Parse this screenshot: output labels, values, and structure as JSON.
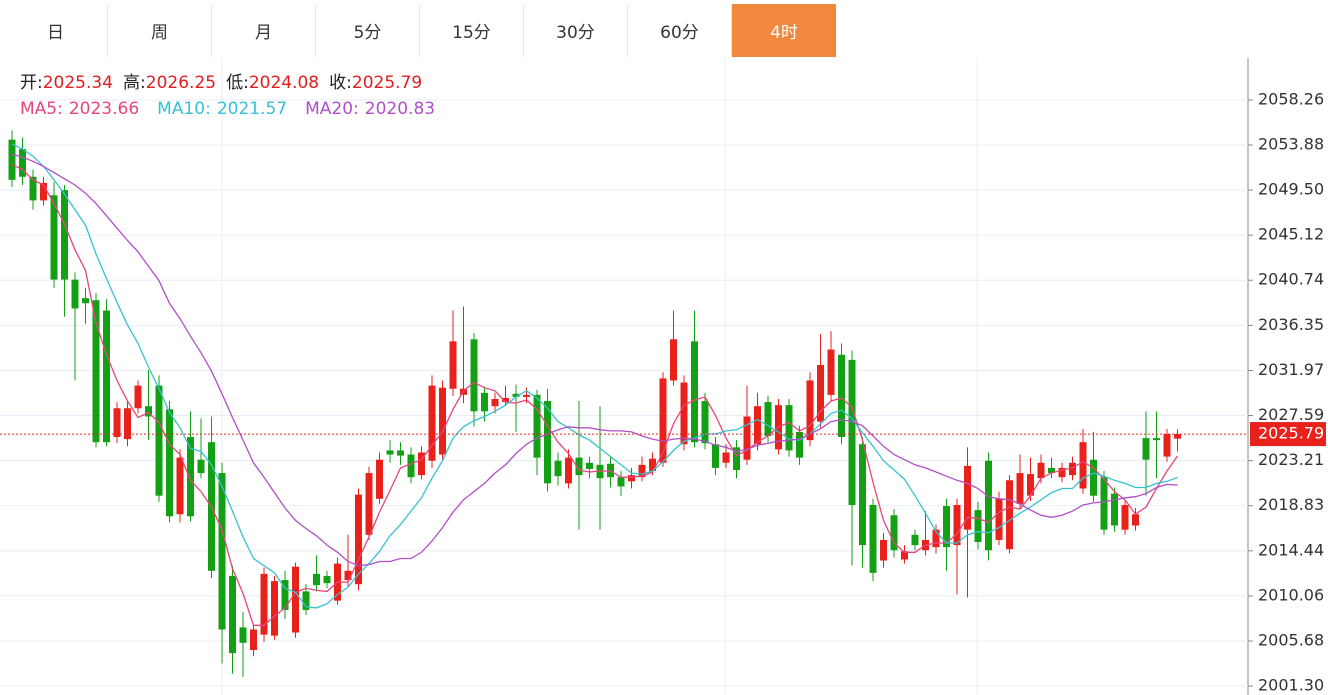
{
  "tabs": [
    "日",
    "周",
    "月",
    "5分",
    "15分",
    "30分",
    "60分",
    "4时"
  ],
  "active_tab": "4时",
  "chart_data": {
    "type": "candlestick",
    "ohlc_labels": [
      "开:",
      "高:",
      "低:",
      "收:"
    ],
    "up_color": "#e8221b",
    "down_color": "#14a014",
    "current_price": 2025.79,
    "ylim": [
      2000.43,
      2062.34
    ],
    "yticks": [
      2058.26,
      2053.88,
      {
        "value": 2049.5,
        "label": "2049.50"
      },
      2045.12,
      2040.74,
      2036.35,
      2031.97,
      2027.59,
      2023.21,
      2018.83,
      2014.44,
      2010.06,
      2005.68,
      {
        "value": 2001.3,
        "label": "2001.30"
      }
    ],
    "grid": true,
    "candles": [
      [
        2054.4,
        2055.3,
        2049.8,
        2050.5
      ],
      [
        2053.5,
        2054.6,
        2050.0,
        2050.8
      ],
      [
        2050.8,
        2051.5,
        2047.6,
        2048.5
      ],
      [
        2048.5,
        2050.8,
        2048.0,
        2050.2
      ],
      [
        2049.0,
        2050.3,
        2040.0,
        2040.8
      ],
      [
        2049.5,
        2050.0,
        2037.2,
        2040.8
      ],
      [
        2040.8,
        2041.5,
        2031.0,
        2038.0
      ],
      [
        2039.0,
        2040.0,
        2036.5,
        2038.5
      ],
      [
        2038.8,
        2039.5,
        2024.5,
        2025.0
      ],
      [
        2037.8,
        2038.9,
        2024.6,
        2025.0
      ],
      [
        2025.5,
        2028.9,
        2024.9,
        2028.3
      ],
      [
        2025.3,
        2029.0,
        2024.6,
        2028.3
      ],
      [
        2028.3,
        2031.0,
        2027.8,
        2030.5
      ],
      [
        2028.5,
        2032.0,
        2025.2,
        2027.5
      ],
      [
        2030.5,
        2031.5,
        2019.2,
        2019.8
      ],
      [
        2028.2,
        2029.0,
        2017.2,
        2017.8
      ],
      [
        2018.0,
        2024.3,
        2017.2,
        2023.5
      ],
      [
        2025.5,
        2028.0,
        2017.3,
        2017.8
      ],
      [
        2023.3,
        2027.3,
        2021.5,
        2022.0
      ],
      [
        2025.0,
        2027.5,
        2011.8,
        2012.5
      ],
      [
        2022.0,
        2023.0,
        2003.5,
        2006.8
      ],
      [
        2012.0,
        2013.0,
        2002.5,
        2004.5
      ],
      [
        2007.0,
        2008.5,
        2002.2,
        2005.5
      ],
      [
        2004.8,
        2007.2,
        2004.2,
        2006.8
      ],
      [
        2006.3,
        2012.8,
        2005.6,
        2012.2
      ],
      [
        2006.2,
        2012.0,
        2005.8,
        2011.5
      ],
      [
        2011.6,
        2012.5,
        2007.8,
        2008.7
      ],
      [
        2006.5,
        2013.3,
        2006.0,
        2012.9
      ],
      [
        2010.5,
        2011.2,
        2008.2,
        2008.7
      ],
      [
        2012.2,
        2014.0,
        2010.5,
        2011.1
      ],
      [
        2012.0,
        2012.5,
        2010.8,
        2011.3
      ],
      [
        2009.6,
        2013.8,
        2009.2,
        2013.2
      ],
      [
        2011.6,
        2016.0,
        2011.0,
        2012.5
      ],
      [
        2011.2,
        2020.5,
        2010.6,
        2019.9
      ],
      [
        2016.0,
        2022.6,
        2015.5,
        2022.0
      ],
      [
        2019.5,
        2024.0,
        2019.0,
        2023.3
      ],
      [
        2024.2,
        2025.2,
        2023.0,
        2023.8
      ],
      [
        2024.2,
        2025.0,
        2022.8,
        2023.7
      ],
      [
        2023.8,
        2024.5,
        2021.0,
        2021.6
      ],
      [
        2021.8,
        2024.6,
        2021.4,
        2024.0
      ],
      [
        2023.2,
        2031.5,
        2022.5,
        2030.5
      ],
      [
        2023.8,
        2031.0,
        2023.3,
        2030.3
      ],
      [
        2030.2,
        2037.8,
        2029.5,
        2034.8
      ],
      [
        2029.6,
        2038.2,
        2028.8,
        2030.2
      ],
      [
        2035.0,
        2035.6,
        2026.5,
        2028.0
      ],
      [
        2029.8,
        2030.4,
        2027.0,
        2028.0
      ],
      [
        2028.5,
        2029.8,
        2027.8,
        2029.2
      ],
      [
        2028.9,
        2030.5,
        2028.5,
        2029.3
      ],
      [
        2029.7,
        2030.6,
        2026.0,
        2029.4
      ],
      [
        2029.4,
        2030.3,
        2028.8,
        2029.6
      ],
      [
        2029.6,
        2030.1,
        2021.8,
        2023.5
      ],
      [
        2029.0,
        2030.2,
        2020.2,
        2021.0
      ],
      [
        2023.2,
        2024.0,
        2020.8,
        2021.7
      ],
      [
        2021.0,
        2024.3,
        2020.5,
        2023.5
      ],
      [
        2023.5,
        2029.0,
        2016.5,
        2021.8
      ],
      [
        2023.0,
        2023.6,
        2021.5,
        2022.4
      ],
      [
        2022.8,
        2028.5,
        2016.5,
        2021.5
      ],
      [
        2022.9,
        2023.6,
        2020.6,
        2021.6
      ],
      [
        2021.6,
        2022.2,
        2019.8,
        2020.7
      ],
      [
        2021.2,
        2022.5,
        2020.5,
        2021.8
      ],
      [
        2021.6,
        2023.6,
        2021.2,
        2022.8
      ],
      [
        2022.2,
        2024.0,
        2021.8,
        2023.4
      ],
      [
        2023.0,
        2031.8,
        2022.6,
        2031.2
      ],
      [
        2031.0,
        2037.8,
        2030.5,
        2035.0
      ],
      [
        2024.8,
        2031.5,
        2024.2,
        2030.8
      ],
      [
        2034.8,
        2037.8,
        2024.5,
        2025.0
      ],
      [
        2029.0,
        2029.8,
        2024.3,
        2024.9
      ],
      [
        2024.8,
        2025.5,
        2021.8,
        2022.5
      ],
      [
        2023.0,
        2024.8,
        2022.5,
        2024.0
      ],
      [
        2024.5,
        2025.2,
        2021.5,
        2022.3
      ],
      [
        2023.3,
        2030.5,
        2022.8,
        2027.5
      ],
      [
        2024.8,
        2029.8,
        2024.2,
        2028.5
      ],
      [
        2028.9,
        2029.5,
        2025.0,
        2025.6
      ],
      [
        2024.3,
        2029.2,
        2023.8,
        2028.6
      ],
      [
        2028.6,
        2029.2,
        2023.6,
        2024.2
      ],
      [
        2026.0,
        2026.6,
        2022.8,
        2023.5
      ],
      [
        2025.2,
        2031.8,
        2024.6,
        2031.0
      ],
      [
        2027.0,
        2035.5,
        2026.4,
        2032.5
      ],
      [
        2029.6,
        2035.8,
        2029.0,
        2034.0
      ],
      [
        2033.5,
        2034.6,
        2024.8,
        2025.5
      ],
      [
        2033.0,
        2033.9,
        2013.0,
        2018.9
      ],
      [
        2024.8,
        2025.5,
        2012.8,
        2015.0
      ],
      [
        2018.9,
        2019.5,
        2011.5,
        2012.3
      ],
      [
        2013.5,
        2016.2,
        2012.8,
        2015.5
      ],
      [
        2017.9,
        2018.5,
        2013.8,
        2014.5
      ],
      [
        2013.6,
        2015.0,
        2013.2,
        2014.4
      ],
      [
        2016.0,
        2016.5,
        2014.5,
        2015.0
      ],
      [
        2014.5,
        2018.3,
        2014.0,
        2015.5
      ],
      [
        2014.8,
        2017.0,
        2014.2,
        2016.5
      ],
      [
        2018.8,
        2019.5,
        2012.5,
        2014.8
      ],
      [
        2015.0,
        2019.5,
        2010.2,
        2018.9
      ],
      [
        2016.5,
        2024.5,
        2009.9,
        2022.7
      ],
      [
        2018.4,
        2019.2,
        2014.6,
        2015.3
      ],
      [
        2023.2,
        2024.0,
        2013.5,
        2014.5
      ],
      [
        2015.5,
        2020.2,
        2015.0,
        2019.5
      ],
      [
        2014.6,
        2021.8,
        2014.2,
        2021.3
      ],
      [
        2019.0,
        2023.8,
        2018.5,
        2022.0
      ],
      [
        2019.8,
        2023.5,
        2019.3,
        2021.9
      ],
      [
        2021.5,
        2023.8,
        2021.0,
        2023.0
      ],
      [
        2022.5,
        2023.5,
        2021.5,
        2022.0
      ],
      [
        2021.6,
        2023.0,
        2021.1,
        2022.5
      ],
      [
        2021.8,
        2023.6,
        2021.3,
        2023.0
      ],
      [
        2020.5,
        2026.3,
        2020.0,
        2025.0
      ],
      [
        2023.3,
        2026.0,
        2019.2,
        2019.8
      ],
      [
        2021.6,
        2022.2,
        2016.0,
        2016.5
      ],
      [
        2020.0,
        2020.6,
        2016.3,
        2016.9
      ],
      [
        2016.5,
        2019.4,
        2016.0,
        2018.9
      ],
      [
        2016.9,
        2018.6,
        2016.4,
        2018.0
      ],
      [
        2025.4,
        2028.0,
        2019.8,
        2023.3
      ],
      [
        2025.4,
        2028.0,
        2021.5,
        2025.2
      ],
      [
        2023.6,
        2026.3,
        2023.1,
        2025.8
      ],
      [
        2025.34,
        2026.25,
        2024.08,
        2025.79
      ]
    ],
    "series": [
      {
        "name": "MA5:",
        "color": "#e8457c",
        "values": [
          2052.0,
          2051.5,
          2050.5,
          2050.0,
          2048.2,
          2046.2,
          2043.7,
          2041.7,
          2036.6,
          2033.5,
          2031.0,
          2029.0,
          2027.4,
          2027.9,
          2026.9,
          2024.8,
          2023.8,
          2021.3,
          2020.2,
          2018.7,
          2016.5,
          2012.7,
          2010.3,
          2007.2,
          2007.2,
          2008.1,
          2008.9,
          2010.4,
          2010.8,
          2010.6,
          2010.5,
          2011.4,
          2011.4,
          2013.6,
          2015.8,
          2018.2,
          2020.3,
          2022.5,
          2022.9,
          2023.3,
          2024.7,
          2026.0,
          2028.2,
          2030.0,
          2030.8,
          2030.3,
          2030.0,
          2028.9,
          2028.8,
          2029.1,
          2028.2,
          2026.6,
          2025.0,
          2023.9,
          2022.3,
          2022.1,
          2022.2,
          2022.2,
          2021.6,
          2021.6,
          2021.7,
          2022.1,
          2024.0,
          2026.8,
          2028.6,
          2029.1,
          2029.4,
          2027.6,
          2025.4,
          2023.7,
          2024.2,
          2025.0,
          2025.6,
          2026.5,
          2026.9,
          2026.1,
          2026.6,
          2028.0,
          2029.0,
          2029.3,
          2028.4,
          2025.2,
          2021.1,
          2017.4,
          2015.2,
          2014.3,
          2014.3,
          2015.0,
          2015.2,
          2015.2,
          2016.1,
          2017.7,
          2017.6,
          2017.2,
          2018.2,
          2018.7,
          2018.5,
          2019.8,
          2021.5,
          2022.0,
          2022.3,
          2022.5,
          2023.1,
          2022.5,
          2021.4,
          2020.2,
          2019.4,
          2018.0,
          2018.7,
          2020.5,
          2022.2,
          2023.66
        ]
      },
      {
        "name": "MA10:",
        "color": "#35c2d2",
        "values": [
          2054.0,
          2053.5,
          2052.8,
          2051.8,
          2050.5,
          2049.1,
          2047.6,
          2046.1,
          2043.3,
          2040.9,
          2038.6,
          2036.4,
          2034.6,
          2032.3,
          2030.2,
          2027.9,
          2026.4,
          2024.4,
          2024.1,
          2022.8,
          2020.7,
          2018.3,
          2015.8,
          2013.7,
          2013.0,
          2012.3,
          2010.8,
          2010.4,
          2009.0,
          2008.9,
          2009.3,
          2010.2,
          2010.9,
          2012.2,
          2013.2,
          2014.4,
          2015.9,
          2017.0,
          2018.3,
          2019.6,
          2021.5,
          2023.2,
          2025.4,
          2026.5,
          2027.1,
          2027.5,
          2028.0,
          2028.6,
          2029.4,
          2030.0,
          2029.3,
          2028.3,
          2027.0,
          2026.4,
          2025.7,
          2025.2,
          2024.4,
          2023.6,
          2022.8,
          2022.0,
          2021.9,
          2022.2,
          2023.1,
          2024.2,
          2025.1,
          2025.4,
          2025.8,
          2025.8,
          2026.1,
          2026.2,
          2026.7,
          2027.2,
          2026.6,
          2026.0,
          2025.3,
          2025.2,
          2025.8,
          2026.8,
          2027.8,
          2028.1,
          2027.3,
          2025.9,
          2024.6,
          2023.2,
          2022.3,
          2021.4,
          2019.8,
          2018.1,
          2016.3,
          2015.2,
          2015.2,
          2016.0,
          2016.3,
          2016.2,
          2016.7,
          2017.4,
          2018.1,
          2018.7,
          2019.4,
          2020.1,
          2020.5,
          2020.5,
          2021.5,
          2022.0,
          2021.7,
          2021.3,
          2021.0,
          2020.6,
          2020.6,
          2021.0,
          2021.2,
          2021.57
        ]
      },
      {
        "name": "MA20:",
        "color": "#b04fc8",
        "values": [
          2053.0,
          2052.7,
          2052.3,
          2051.8,
          2051.2,
          2050.6,
          2050.0,
          2049.2,
          2048.2,
          2047.0,
          2045.8,
          2044.6,
          2043.5,
          2042.1,
          2040.7,
          2038.5,
          2037.0,
          2035.3,
          2033.7,
          2031.9,
          2029.7,
          2027.4,
          2025.2,
          2023.0,
          2021.6,
          2020.1,
          2018.6,
          2017.4,
          2016.6,
          2015.9,
          2015.0,
          2014.3,
          2013.4,
          2013.0,
          2013.1,
          2013.4,
          2013.4,
          2013.7,
          2013.7,
          2014.3,
          2015.4,
          2016.7,
          2018.2,
          2019.4,
          2020.2,
          2021.0,
          2022.0,
          2022.8,
          2023.9,
          2024.8,
          2025.4,
          2025.8,
          2026.2,
          2026.5,
          2026.4,
          2026.4,
          2026.2,
          2026.1,
          2026.1,
          2026.0,
          2025.6,
          2025.3,
          2025.1,
          2025.3,
          2025.4,
          2025.3,
          2025.1,
          2024.7,
          2024.5,
          2024.1,
          2024.3,
          2024.7,
          2024.9,
          2025.1,
          2025.2,
          2025.3,
          2025.8,
          2026.3,
          2027.0,
          2027.2,
          2027.0,
          2026.6,
          2025.6,
          2024.6,
          2023.8,
          2023.3,
          2022.8,
          2022.5,
          2022.1,
          2021.7,
          2021.3,
          2021.0,
          2020.5,
          2019.7,
          2019.5,
          2019.4,
          2019.0,
          2018.4,
          2017.9,
          2017.7,
          2017.9,
          2018.3,
          2018.9,
          2019.1,
          2019.2,
          2019.4,
          2019.6,
          2019.7,
          2020.0,
          2020.6,
          2020.9,
          2020.83
        ]
      }
    ]
  }
}
